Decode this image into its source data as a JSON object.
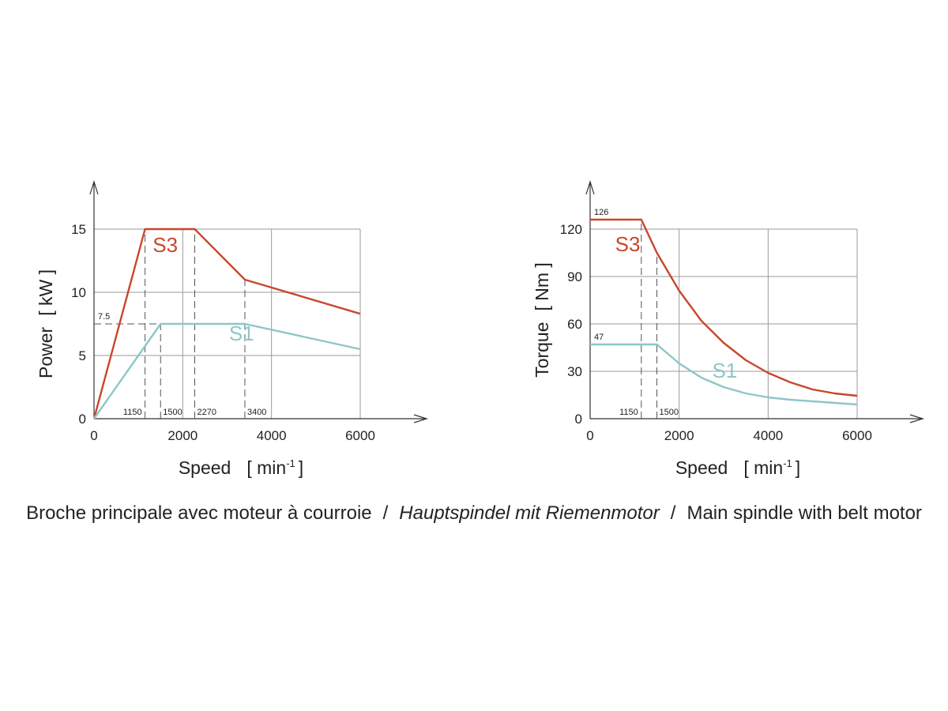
{
  "chart_data": [
    {
      "type": "line",
      "ylabel": "Power [kW]",
      "xlabel": "Speed [min-1]",
      "xlabel_main": "Speed",
      "xlabel_unit_pre": "[ min",
      "xlabel_unit_sup": "-1",
      "xlabel_unit_post": "]",
      "ylabel_main": "Power",
      "ylabel_unit": "[ kW ]",
      "xlim": [
        0,
        6000
      ],
      "ylim": [
        0,
        15
      ],
      "xticks": [
        0,
        2000,
        4000,
        6000
      ],
      "yticks": [
        0,
        5,
        10,
        15
      ],
      "grid": true,
      "series": [
        {
          "name": "S3",
          "color": "#c8472b",
          "x": [
            0,
            1150,
            2270,
            3400,
            6000
          ],
          "y": [
            0,
            15,
            15,
            11,
            8.3
          ]
        },
        {
          "name": "S1",
          "color": "#8ec6c8",
          "x": [
            0,
            1500,
            3400,
            6000
          ],
          "y": [
            0,
            7.5,
            7.5,
            5.5
          ]
        }
      ],
      "vmarkers": [
        {
          "x": 1150,
          "label": "1150"
        },
        {
          "x": 1500,
          "label": "1500"
        },
        {
          "x": 2270,
          "label": "2270"
        },
        {
          "x": 3400,
          "label": "3400"
        }
      ],
      "hmarkers": [
        {
          "y": 7.5,
          "label": "7.5"
        }
      ]
    },
    {
      "type": "line",
      "ylabel": "Torque [Nm]",
      "xlabel": "Speed [min-1]",
      "xlabel_main": "Speed",
      "xlabel_unit_pre": "[ min",
      "xlabel_unit_sup": "-1",
      "xlabel_unit_post": "]",
      "ylabel_main": "Torque",
      "ylabel_unit": "[ Nm ]",
      "xlim": [
        0,
        6000
      ],
      "ylim": [
        0,
        120
      ],
      "xticks": [
        0,
        2000,
        4000,
        6000
      ],
      "yticks": [
        0,
        30,
        60,
        90,
        120
      ],
      "grid": true,
      "series": [
        {
          "name": "S3",
          "color": "#c8472b",
          "x": [
            0,
            1150,
            1500,
            2000,
            2500,
            3000,
            3500,
            4000,
            4500,
            5000,
            5500,
            6000
          ],
          "y": [
            126,
            126,
            105,
            81,
            62,
            48,
            37,
            29,
            23,
            18.5,
            16,
            14.5
          ]
        },
        {
          "name": "S1",
          "color": "#8ec6c8",
          "x": [
            0,
            1500,
            2000,
            2500,
            3000,
            3500,
            4000,
            4500,
            5000,
            5500,
            6000
          ],
          "y": [
            47,
            47,
            35,
            26,
            20,
            16,
            13.5,
            12,
            11,
            10,
            9
          ]
        }
      ],
      "vmarkers": [
        {
          "x": 1150,
          "label": "1150"
        },
        {
          "x": 1500,
          "label": "1500"
        }
      ],
      "hmarkers": [
        {
          "y": 126,
          "label": "126"
        },
        {
          "y": 47,
          "label": "47"
        }
      ]
    }
  ],
  "caption": {
    "fr": "Broche principale avec moteur à courroie",
    "de": "Hauptspindel mit Riemenmotor",
    "en": "Main spindle with belt motor",
    "separator": "/"
  }
}
